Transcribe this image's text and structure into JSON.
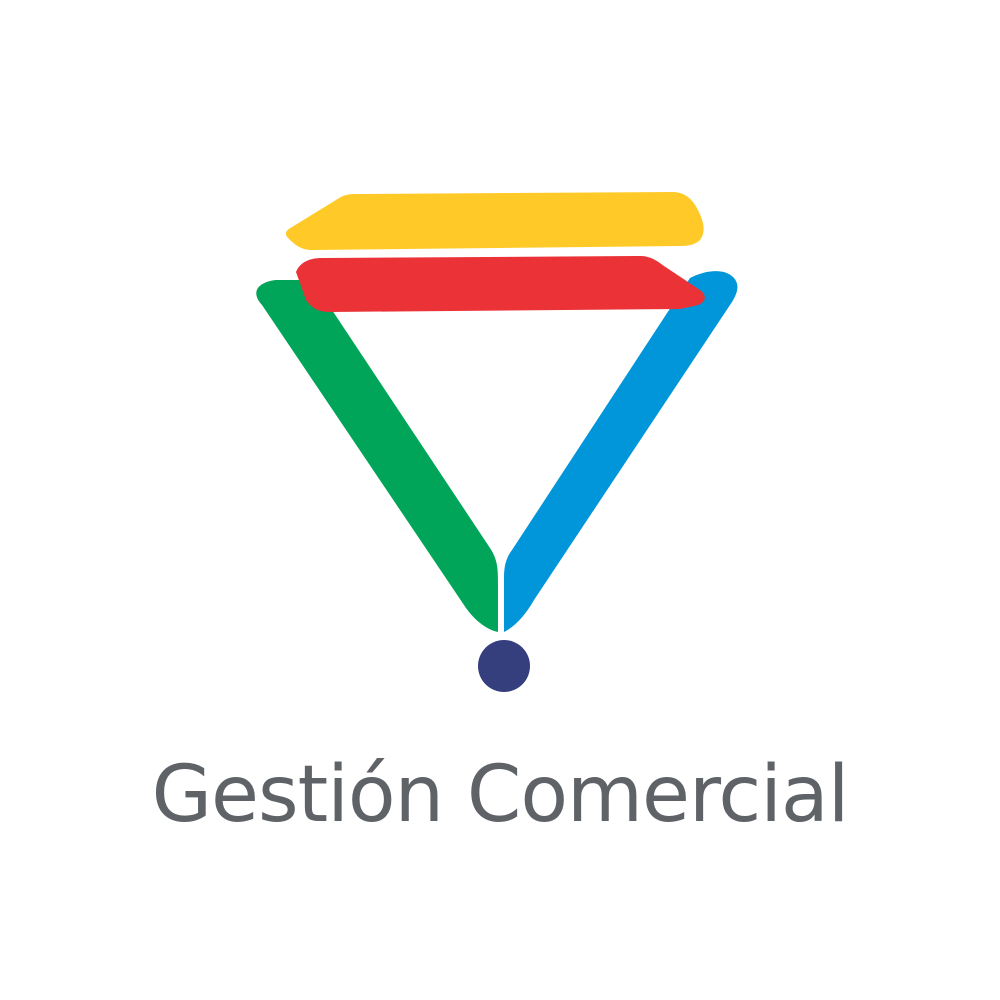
{
  "brand": {
    "name": "Gestión Comercial",
    "colors": {
      "yellow": "#FFCA28",
      "red": "#EA3237",
      "green": "#00A55A",
      "blue": "#0096D9",
      "dot": "#363F7E",
      "text": "#5F6368",
      "background": "#FFFFFF"
    }
  }
}
